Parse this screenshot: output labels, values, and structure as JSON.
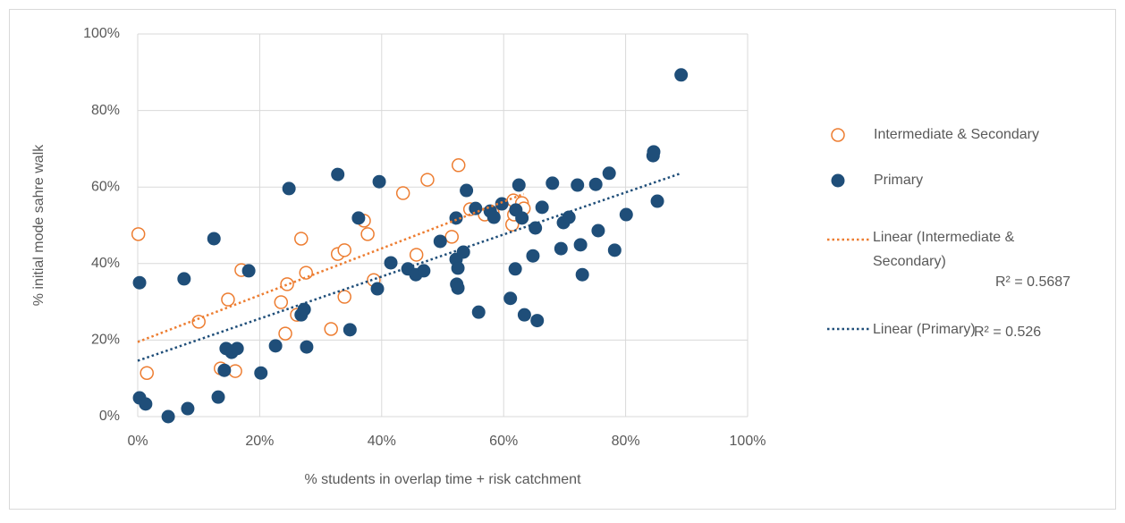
{
  "chart_data": {
    "type": "scatter",
    "x_label": "% students in overlap time  + risk catchment",
    "y_label": "% initial mode sahre walk",
    "xlim": [
      0,
      100
    ],
    "ylim": [
      0,
      100
    ],
    "xticks": [
      {
        "value": 0,
        "label": "0%"
      },
      {
        "value": 20,
        "label": "20%"
      },
      {
        "value": 40,
        "label": "40%"
      },
      {
        "value": 60,
        "label": "60%"
      },
      {
        "value": 80,
        "label": "80%"
      },
      {
        "value": 100,
        "label": "100%"
      }
    ],
    "yticks": [
      {
        "value": 0,
        "label": "0%"
      },
      {
        "value": 20,
        "label": "20%"
      },
      {
        "value": 40,
        "label": "40%"
      },
      {
        "value": 60,
        "label": "60%"
      },
      {
        "value": 80,
        "label": "80%"
      },
      {
        "value": 100,
        "label": "100%"
      }
    ],
    "grid": true,
    "legend": "right",
    "series": [
      {
        "name": "Intermediate & Secondary",
        "color": "#ed7d31",
        "filled": false,
        "x": [
          0.1,
          1.5,
          10,
          13.6,
          14.8,
          16,
          17,
          23.5,
          24.2,
          24.5,
          26.1,
          26.8,
          27.6,
          31.7,
          32.8,
          33.9,
          33.9,
          37.1,
          37.7,
          38.7,
          43.5,
          45.7,
          47.5,
          51.5,
          52.6,
          54.5,
          56.9,
          58.2,
          61.4,
          61.6,
          63,
          63.3,
          61.7
        ],
        "values": [
          47.7,
          11.4,
          24.8,
          12.6,
          30.6,
          11.9,
          38.3,
          29.9,
          21.7,
          34.6,
          26.6,
          46.5,
          37.6,
          22.9,
          42.5,
          43.5,
          31.3,
          51.2,
          47.7,
          35.7,
          58.4,
          42.3,
          61.9,
          47,
          65.7,
          54.2,
          52.8,
          53.3,
          50.2,
          56.5,
          55.8,
          54.4,
          52.8
        ]
      },
      {
        "name": "Primary",
        "color": "#1f4e79",
        "filled": true,
        "x": [
          0.3,
          0.3,
          1.3,
          5,
          7.6,
          8.2,
          12.5,
          13.2,
          14.2,
          14.5,
          15.4,
          16.3,
          18.2,
          20.2,
          22.6,
          24.8,
          26.8,
          27.3,
          27.7,
          32.8,
          34.8,
          36.2,
          39.3,
          39.6,
          41.5,
          44.3,
          45.6,
          46.9,
          49.6,
          52.2,
          52.2,
          52.3,
          52.5,
          52.5,
          53.4,
          53.9,
          55.4,
          55.9,
          57.8,
          58.4,
          59.7,
          61.1,
          61.9,
          62,
          62.5,
          63,
          63.4,
          64.8,
          65.2,
          65.5,
          66.3,
          68,
          69.4,
          69.8,
          70.7,
          72.1,
          72.6,
          72.9,
          75.1,
          75.5,
          77.3,
          78.2,
          80.1,
          84.5,
          84.6,
          85.2,
          89.1
        ],
        "values": [
          35,
          4.9,
          3.3,
          0,
          36,
          2.1,
          46.5,
          5.1,
          12.1,
          17.8,
          16.8,
          17.8,
          38.1,
          11.4,
          18.5,
          59.6,
          26.6,
          28,
          18.2,
          63.3,
          22.7,
          51.9,
          33.4,
          61.4,
          40.2,
          38.6,
          37.1,
          38.1,
          45.8,
          51.9,
          41.1,
          34.6,
          33.6,
          38.8,
          43,
          59.1,
          54.4,
          27.3,
          53.7,
          52.1,
          55.6,
          30.9,
          38.6,
          54,
          60.5,
          51.9,
          26.6,
          42,
          49.3,
          25.1,
          54.7,
          61,
          43.9,
          50.7,
          52.1,
          60.5,
          44.9,
          37.1,
          60.7,
          48.6,
          63.6,
          43.5,
          52.8,
          68.2,
          69.2,
          56.3,
          89.3
        ]
      }
    ],
    "trendlines": [
      {
        "name": "Linear (Intermediate & Secondary)",
        "r2_label": "R² = 0.5687",
        "color": "#ed7d31",
        "x": [
          0,
          63.3
        ],
        "values": [
          19.5,
          58.2
        ]
      },
      {
        "name": "Linear (Primary)",
        "r2_label": "R² = 0.526",
        "color": "#1f4e79",
        "x": [
          0,
          89.1
        ],
        "values": [
          14.6,
          63.6
        ]
      }
    ]
  }
}
